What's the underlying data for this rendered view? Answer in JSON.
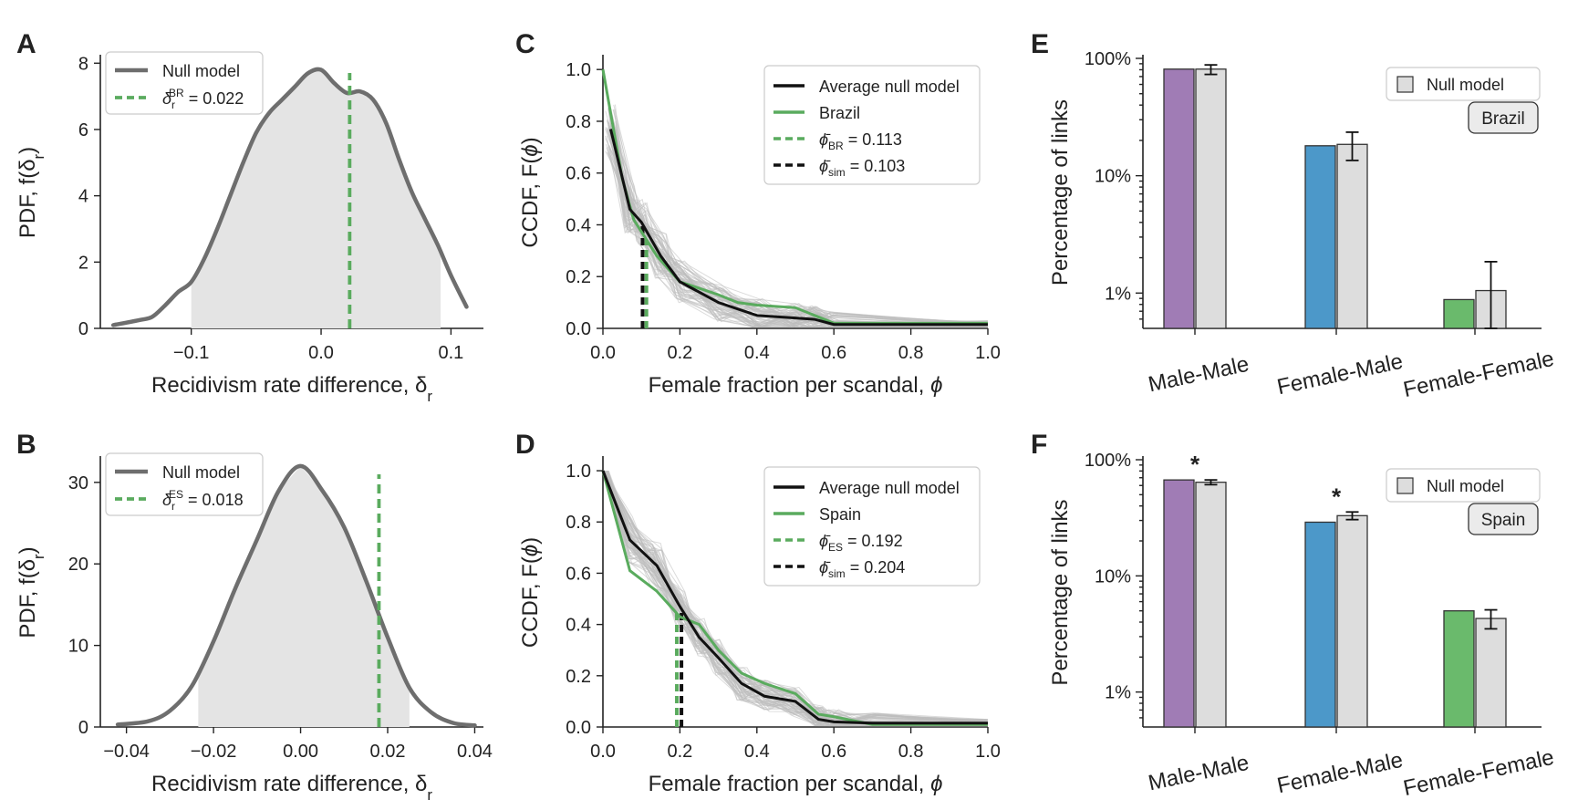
{
  "chart_data": [
    {
      "panel": "A",
      "type": "area",
      "xlabel": "Recidivism rate difference, δ",
      "xlabel_sub": "r",
      "ylabel": "PDF, f(δ",
      "ylabel_sub": "r",
      "ylabel_end": ")",
      "xlim": [
        -0.17,
        0.125
      ],
      "ylim": [
        0,
        8.2
      ],
      "xticks": [
        -0.1,
        0.0,
        0.1
      ],
      "xtick_labels": [
        "−0.1",
        "0.0",
        "0.1"
      ],
      "yticks": [
        0,
        2,
        4,
        6,
        8
      ],
      "ytick_labels": [
        "0",
        "2",
        "4",
        "6",
        "8"
      ],
      "shade_range": [
        -0.1,
        0.092
      ],
      "series": [
        {
          "name": "Null model",
          "x": [
            -0.16,
            -0.14,
            -0.13,
            -0.12,
            -0.11,
            -0.1,
            -0.09,
            -0.08,
            -0.07,
            -0.06,
            -0.05,
            -0.04,
            -0.03,
            -0.02,
            -0.01,
            0.0,
            0.01,
            0.02,
            0.03,
            0.04,
            0.05,
            0.06,
            0.07,
            0.08,
            0.09,
            0.1,
            0.112
          ],
          "y": [
            0.1,
            0.25,
            0.35,
            0.7,
            1.1,
            1.4,
            2.1,
            3.0,
            4.0,
            5.0,
            5.9,
            6.5,
            6.9,
            7.3,
            7.7,
            7.8,
            7.4,
            7.1,
            7.15,
            6.9,
            6.2,
            5.1,
            4.1,
            3.3,
            2.5,
            1.6,
            0.65
          ]
        }
      ],
      "vlines": [
        {
          "x": 0.022,
          "label": "δ",
          "sub": "r",
          "sup": "BR",
          "value_text": "= 0.022"
        }
      ],
      "legend": "top-left"
    },
    {
      "panel": "B",
      "type": "area",
      "xlabel": "Recidivism rate difference, δ",
      "xlabel_sub": "r",
      "ylabel": "PDF, f(δ",
      "ylabel_sub": "r",
      "ylabel_end": ")",
      "xlim": [
        -0.046,
        0.042
      ],
      "ylim": [
        0,
        33
      ],
      "xticks": [
        -0.04,
        -0.02,
        0.0,
        0.02,
        0.04
      ],
      "xtick_labels": [
        "−0.04",
        "−0.02",
        "0.00",
        "0.02",
        "0.04"
      ],
      "yticks": [
        0,
        10,
        20,
        30
      ],
      "ytick_labels": [
        "0",
        "10",
        "20",
        "30"
      ],
      "shade_range": [
        -0.0235,
        0.025
      ],
      "series": [
        {
          "name": "Null model",
          "x": [
            -0.042,
            -0.035,
            -0.03,
            -0.025,
            -0.02,
            -0.015,
            -0.01,
            -0.005,
            0.0,
            0.005,
            0.01,
            0.015,
            0.02,
            0.025,
            0.03,
            0.035,
            0.04
          ],
          "y": [
            0.3,
            0.7,
            2.0,
            5.0,
            10.5,
            17.0,
            23.0,
            29.0,
            32.0,
            29.0,
            24.5,
            18.0,
            11.0,
            4.8,
            1.8,
            0.5,
            0.2
          ]
        }
      ],
      "vlines": [
        {
          "x": 0.018,
          "label": "δ",
          "sub": "r",
          "sup": "ES",
          "value_text": "= 0.018"
        }
      ],
      "legend": "top-left"
    },
    {
      "panel": "C",
      "type": "line",
      "xlabel": "Female fraction per scandal, ",
      "xlabel_sym": "ϕ",
      "ylabel": "CCDF, F(",
      "ylabel_sym": "ϕ",
      "ylabel_end": ")",
      "xlim": [
        0,
        1
      ],
      "ylim": [
        0,
        1.05
      ],
      "xticks": [
        0,
        0.2,
        0.4,
        0.6,
        0.8,
        1.0
      ],
      "xtick_labels": [
        "0.0",
        "0.2",
        "0.4",
        "0.6",
        "0.8",
        "1.0"
      ],
      "yticks": [
        0,
        0.2,
        0.4,
        0.6,
        0.8,
        1.0
      ],
      "ytick_labels": [
        "0.0",
        "0.2",
        "0.4",
        "0.6",
        "0.8",
        "1.0"
      ],
      "series": [
        {
          "name": "Average null model",
          "x": [
            0.02,
            0.07,
            0.1,
            0.15,
            0.2,
            0.3,
            0.4,
            0.5,
            0.55,
            0.6,
            1.0
          ],
          "y": [
            0.77,
            0.46,
            0.41,
            0.28,
            0.18,
            0.1,
            0.05,
            0.04,
            0.035,
            0.015,
            0.015
          ]
        },
        {
          "name": "Brazil",
          "x": [
            0.0,
            0.05,
            0.08,
            0.11,
            0.14,
            0.2,
            0.3,
            0.35,
            0.4,
            0.5,
            0.55,
            0.6,
            1.0
          ],
          "y": [
            1.0,
            0.58,
            0.42,
            0.35,
            0.28,
            0.18,
            0.13,
            0.1,
            0.09,
            0.08,
            0.05,
            0.02,
            0.02
          ]
        }
      ],
      "vlines": [
        {
          "x": 0.113,
          "label": "ϕ̄",
          "sub": "BR",
          "value_text": "= 0.113"
        },
        {
          "x": 0.103,
          "label": "ϕ̄",
          "sub": "sim",
          "value_text": "= 0.103"
        }
      ],
      "legend": "top-right"
    },
    {
      "panel": "D",
      "type": "line",
      "xlabel": "Female fraction per scandal, ",
      "xlabel_sym": "ϕ",
      "ylabel": "CCDF, F(",
      "ylabel_sym": "ϕ",
      "ylabel_end": ")",
      "xlim": [
        0,
        1
      ],
      "ylim": [
        0,
        1.05
      ],
      "xticks": [
        0,
        0.2,
        0.4,
        0.6,
        0.8,
        1.0
      ],
      "xtick_labels": [
        "0.0",
        "0.2",
        "0.4",
        "0.6",
        "0.8",
        "1.0"
      ],
      "yticks": [
        0,
        0.2,
        0.4,
        0.6,
        0.8,
        1.0
      ],
      "ytick_labels": [
        "0.0",
        "0.2",
        "0.4",
        "0.6",
        "0.8",
        "1.0"
      ],
      "series": [
        {
          "name": "Average null model",
          "x": [
            0.0,
            0.07,
            0.14,
            0.2,
            0.25,
            0.3,
            0.36,
            0.42,
            0.5,
            0.56,
            0.6,
            0.7,
            1.0
          ],
          "y": [
            1.0,
            0.73,
            0.63,
            0.47,
            0.35,
            0.27,
            0.17,
            0.12,
            0.1,
            0.03,
            0.02,
            0.015,
            0.015
          ]
        },
        {
          "name": "Spain",
          "x": [
            0.0,
            0.07,
            0.14,
            0.2,
            0.25,
            0.3,
            0.36,
            0.42,
            0.5,
            0.56,
            0.6,
            0.7,
            1.0
          ],
          "y": [
            1.0,
            0.61,
            0.53,
            0.43,
            0.4,
            0.3,
            0.21,
            0.17,
            0.13,
            0.05,
            0.04,
            0.01,
            0.01
          ]
        }
      ],
      "vlines": [
        {
          "x": 0.192,
          "label": "ϕ̄",
          "sub": "ES",
          "value_text": "= 0.192"
        },
        {
          "x": 0.204,
          "label": "ϕ̄",
          "sub": "sim",
          "value_text": "= 0.204"
        }
      ],
      "legend": "top-right"
    },
    {
      "panel": "E",
      "type": "bar",
      "yscale": "log",
      "ylabel": "Percentage of links",
      "categories": [
        "Male-Male",
        "Female-Male",
        "Female-Female"
      ],
      "ytick_labels": [
        "1%",
        "10%",
        "100%"
      ],
      "ylim": [
        0.5,
        100
      ],
      "series": [
        {
          "name": "",
          "values": [
            81,
            18,
            0.88
          ],
          "colors": [
            "#a07cb5",
            "#4c98c9",
            "#6aba6c"
          ]
        },
        {
          "name": "Null model",
          "values": [
            81,
            18.5,
            1.05
          ],
          "errors": [
            [
              73,
              88
            ],
            [
              13.5,
              23.5
            ],
            [
              0.5,
              1.85
            ]
          ]
        }
      ],
      "badge": "Brazil",
      "significance": [
        false,
        false,
        false
      ],
      "significance_mark": "*",
      "legend": "top-right"
    },
    {
      "panel": "F",
      "type": "bar",
      "yscale": "log",
      "ylabel": "Percentage of links",
      "categories": [
        "Male-Male",
        "Female-Male",
        "Female-Female"
      ],
      "ytick_labels": [
        "1%",
        "10%",
        "100%"
      ],
      "ylim": [
        0.5,
        100
      ],
      "series": [
        {
          "name": "",
          "values": [
            67,
            29,
            5.0
          ],
          "colors": [
            "#a07cb5",
            "#4c98c9",
            "#6aba6c"
          ]
        },
        {
          "name": "Null model",
          "values": [
            64,
            33,
            4.3
          ],
          "errors": [
            [
              61,
              67
            ],
            [
              30.5,
              35.5
            ],
            [
              3.5,
              5.1
            ]
          ]
        }
      ],
      "badge": "Spain",
      "significance": [
        true,
        true,
        false
      ],
      "significance_mark": "*",
      "legend": "top-right"
    }
  ],
  "colors": {
    "null_line": "#6e6e6e",
    "shade": "#e4e4e4",
    "green": "#5aab5e",
    "black": "#111111",
    "gray_bars": "#dddddd"
  }
}
